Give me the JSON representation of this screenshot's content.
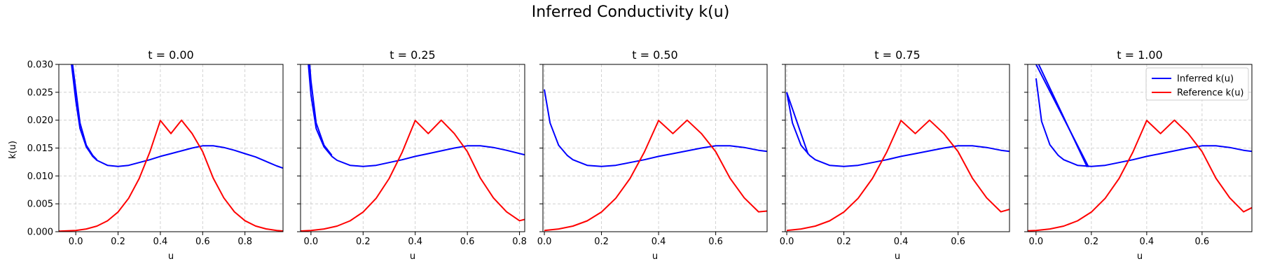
{
  "figure": {
    "title": "Inferred Conductivity k(u)",
    "ylabel": "k(u)",
    "xlabel": "u"
  },
  "colors": {
    "inferred": "#0000ff",
    "reference": "#ff0000",
    "grid": "#b0b0b0"
  },
  "chart_data": [
    {
      "type": "line",
      "title": "t = 0.00",
      "xlabel": "u",
      "ylabel": "k(u)",
      "xlim": [
        -0.08,
        0.98
      ],
      "ylim": [
        0,
        0.03
      ],
      "xticks": [
        0.0,
        0.2,
        0.4,
        0.6,
        0.8
      ],
      "xtick_labels": [
        "0.0",
        "0.2",
        "0.4",
        "0.6",
        "0.8"
      ],
      "yticks": [
        0.0,
        0.005,
        0.01,
        0.015,
        0.02,
        0.025,
        0.03
      ],
      "ytick_labels": [
        "0.000",
        "0.005",
        "0.010",
        "0.015",
        "0.020",
        "0.025",
        "0.030"
      ],
      "grid": true,
      "legend": null,
      "series": [
        {
          "name": "Inferred k(u)",
          "color": "#0000ff",
          "lines": [
            {
              "x": [
                -0.02,
                0.0,
                0.02,
                0.05,
                0.08,
                0.1,
                0.15,
                0.2,
                0.25,
                0.3,
                0.35,
                0.4,
                0.45,
                0.5,
                0.55,
                0.6,
                0.65,
                0.7,
                0.75,
                0.8,
                0.85,
                0.9,
                0.95,
                0.98
              ],
              "y": [
                0.03,
                0.0235,
                0.0185,
                0.0152,
                0.0135,
                0.0128,
                0.0119,
                0.0117,
                0.0119,
                0.0124,
                0.0129,
                0.0135,
                0.014,
                0.0145,
                0.015,
                0.0154,
                0.0154,
                0.0151,
                0.0146,
                0.014,
                0.0134,
                0.0126,
                0.0118,
                0.0114
              ]
            },
            {
              "x": [
                -0.015,
                0.0,
                0.02,
                0.05,
                0.08,
                0.1
              ],
              "y": [
                0.03,
                0.0255,
                0.0195,
                0.0155,
                0.0137,
                0.0129
              ]
            }
          ]
        },
        {
          "name": "Reference k(u)",
          "color": "#ff0000",
          "lines": [
            {
              "x": [
                -0.08,
                0.0,
                0.05,
                0.1,
                0.15,
                0.2,
                0.25,
                0.3,
                0.35,
                0.4,
                0.45,
                0.5,
                0.55,
                0.6,
                0.65,
                0.7,
                0.75,
                0.8,
                0.85,
                0.9,
                0.95,
                0.98
              ],
              "y": [
                0.0001,
                0.00022,
                0.00049,
                0.00101,
                0.00195,
                0.00353,
                0.00599,
                0.00954,
                0.01426,
                0.01994,
                0.0176,
                0.02,
                0.0176,
                0.01436,
                0.0096,
                0.00606,
                0.00357,
                0.00197,
                0.00102,
                0.0005,
                0.00022,
                0.00013
              ]
            }
          ]
        }
      ]
    },
    {
      "type": "line",
      "title": "t = 0.25",
      "xlabel": "u",
      "ylabel": "",
      "xlim": [
        -0.04,
        0.82
      ],
      "ylim": [
        0,
        0.03
      ],
      "xticks": [
        0.0,
        0.2,
        0.4,
        0.6,
        0.8
      ],
      "xtick_labels": [
        "0.0",
        "0.2",
        "0.4",
        "0.6",
        "0.8"
      ],
      "yticks": [
        0.0,
        0.005,
        0.01,
        0.015,
        0.02,
        0.025,
        0.03
      ],
      "grid": true,
      "legend": null,
      "series": [
        {
          "name": "Inferred k(u)",
          "color": "#0000ff",
          "lines": [
            {
              "x": [
                -0.01,
                0.0,
                0.02,
                0.05,
                0.08,
                0.1,
                0.15,
                0.2,
                0.25,
                0.3,
                0.35,
                0.4,
                0.45,
                0.5,
                0.55,
                0.6,
                0.65,
                0.7,
                0.75,
                0.82
              ],
              "y": [
                0.03,
                0.0245,
                0.0185,
                0.0152,
                0.0135,
                0.0128,
                0.0119,
                0.0117,
                0.0119,
                0.0124,
                0.0129,
                0.0135,
                0.014,
                0.0145,
                0.015,
                0.0154,
                0.0154,
                0.0151,
                0.0146,
                0.0138
              ]
            },
            {
              "x": [
                -0.005,
                0.0,
                0.02,
                0.05,
                0.08
              ],
              "y": [
                0.03,
                0.027,
                0.0195,
                0.0155,
                0.0137
              ]
            }
          ]
        },
        {
          "name": "Reference k(u)",
          "color": "#ff0000",
          "lines": [
            {
              "x": [
                -0.04,
                0.0,
                0.05,
                0.1,
                0.15,
                0.2,
                0.25,
                0.3,
                0.35,
                0.4,
                0.45,
                0.5,
                0.55,
                0.6,
                0.65,
                0.7,
                0.75,
                0.8,
                0.82
              ],
              "y": [
                0.00013,
                0.00022,
                0.00049,
                0.00101,
                0.00195,
                0.00353,
                0.00599,
                0.00954,
                0.01426,
                0.01994,
                0.0176,
                0.02,
                0.0176,
                0.01436,
                0.0096,
                0.00606,
                0.00357,
                0.00197,
                0.0022
              ]
            }
          ]
        }
      ]
    },
    {
      "type": "line",
      "title": "t = 0.50",
      "xlabel": "u",
      "ylabel": "",
      "xlim": [
        -0.005,
        0.78
      ],
      "ylim": [
        0,
        0.03
      ],
      "xticks": [
        0.0,
        0.2,
        0.4,
        0.6
      ],
      "xtick_labels": [
        "0.0",
        "0.2",
        "0.4",
        "0.6"
      ],
      "yticks": [
        0.0,
        0.005,
        0.01,
        0.015,
        0.02,
        0.025,
        0.03
      ],
      "grid": true,
      "legend": null,
      "series": [
        {
          "name": "Inferred k(u)",
          "color": "#0000ff",
          "lines": [
            {
              "x": [
                0.0,
                0.02,
                0.05,
                0.08,
                0.1,
                0.15,
                0.2,
                0.25,
                0.3,
                0.35,
                0.4,
                0.45,
                0.5,
                0.55,
                0.6,
                0.65,
                0.7,
                0.75,
                0.78
              ],
              "y": [
                0.0255,
                0.0195,
                0.0155,
                0.0137,
                0.0129,
                0.0119,
                0.0117,
                0.0119,
                0.0124,
                0.0129,
                0.0135,
                0.014,
                0.0145,
                0.015,
                0.0154,
                0.0154,
                0.0151,
                0.0146,
                0.0144
              ]
            }
          ]
        },
        {
          "name": "Reference k(u)",
          "color": "#ff0000",
          "lines": [
            {
              "x": [
                0.0,
                0.05,
                0.1,
                0.15,
                0.2,
                0.25,
                0.3,
                0.35,
                0.4,
                0.45,
                0.5,
                0.55,
                0.6,
                0.65,
                0.7,
                0.75,
                0.78
              ],
              "y": [
                0.00022,
                0.00049,
                0.00101,
                0.00195,
                0.00353,
                0.00599,
                0.00954,
                0.01426,
                0.01994,
                0.0176,
                0.02,
                0.0176,
                0.01436,
                0.0096,
                0.00606,
                0.00357,
                0.0037
              ]
            }
          ]
        }
      ]
    },
    {
      "type": "line",
      "title": "t = 0.75",
      "xlabel": "u",
      "ylabel": "",
      "xlim": [
        -0.005,
        0.78
      ],
      "ylim": [
        0,
        0.03
      ],
      "xticks": [
        0.0,
        0.2,
        0.4,
        0.6
      ],
      "xtick_labels": [
        "0.0",
        "0.2",
        "0.4",
        "0.6"
      ],
      "yticks": [
        0.0,
        0.005,
        0.01,
        0.015,
        0.02,
        0.025,
        0.03
      ],
      "grid": true,
      "legend": null,
      "series": [
        {
          "name": "Inferred k(u)",
          "color": "#0000ff",
          "lines": [
            {
              "x": [
                0.0,
                0.02,
                0.05,
                0.08,
                0.1,
                0.15,
                0.2,
                0.25,
                0.3,
                0.35,
                0.4,
                0.45,
                0.5,
                0.55,
                0.6,
                0.65,
                0.7,
                0.75,
                0.78
              ],
              "y": [
                0.025,
                0.0195,
                0.0155,
                0.0137,
                0.0129,
                0.0119,
                0.0117,
                0.0119,
                0.0124,
                0.0129,
                0.0135,
                0.014,
                0.0145,
                0.015,
                0.0154,
                0.0154,
                0.0151,
                0.0146,
                0.0144
              ]
            },
            {
              "x": [
                0.0,
                0.075
              ],
              "y": [
                0.025,
                0.0139
              ]
            }
          ]
        },
        {
          "name": "Reference k(u)",
          "color": "#ff0000",
          "lines": [
            {
              "x": [
                0.0,
                0.05,
                0.1,
                0.15,
                0.2,
                0.25,
                0.3,
                0.35,
                0.4,
                0.45,
                0.5,
                0.55,
                0.6,
                0.65,
                0.7,
                0.75,
                0.78
              ],
              "y": [
                0.00022,
                0.00049,
                0.00101,
                0.00195,
                0.00353,
                0.00599,
                0.00954,
                0.01426,
                0.01994,
                0.0176,
                0.02,
                0.0176,
                0.01436,
                0.0096,
                0.00606,
                0.00357,
                0.004
              ]
            }
          ]
        }
      ]
    },
    {
      "type": "line",
      "title": "t = 1.00",
      "xlabel": "u",
      "ylabel": "",
      "xlim": [
        -0.03,
        0.78
      ],
      "ylim": [
        0,
        0.03
      ],
      "xticks": [
        0.0,
        0.2,
        0.4,
        0.6
      ],
      "xtick_labels": [
        "0.0",
        "0.2",
        "0.4",
        "0.6"
      ],
      "yticks": [
        0.0,
        0.005,
        0.01,
        0.015,
        0.02,
        0.025,
        0.03
      ],
      "grid": true,
      "legend": "top-right",
      "series": [
        {
          "name": "Inferred k(u)",
          "color": "#0000ff",
          "lines": [
            {
              "x": [
                0.0,
                0.02,
                0.05,
                0.08,
                0.1,
                0.15,
                0.2,
                0.25,
                0.3,
                0.35,
                0.4,
                0.45,
                0.5,
                0.55,
                0.6,
                0.65,
                0.7,
                0.75,
                0.78
              ],
              "y": [
                0.0275,
                0.0198,
                0.0156,
                0.0137,
                0.0129,
                0.0119,
                0.0117,
                0.0119,
                0.0124,
                0.0129,
                0.0135,
                0.014,
                0.0145,
                0.015,
                0.0154,
                0.0154,
                0.0151,
                0.0146,
                0.0144
              ]
            },
            {
              "x": [
                -0.005,
                0.19
              ],
              "y": [
                0.0305,
                0.0116
              ]
            },
            {
              "x": [
                0.005,
                0.185
              ],
              "y": [
                0.0305,
                0.0116
              ]
            }
          ]
        },
        {
          "name": "Reference k(u)",
          "color": "#ff0000",
          "lines": [
            {
              "x": [
                -0.03,
                0.0,
                0.05,
                0.1,
                0.15,
                0.2,
                0.25,
                0.3,
                0.35,
                0.4,
                0.45,
                0.5,
                0.55,
                0.6,
                0.65,
                0.7,
                0.75,
                0.78
              ],
              "y": [
                0.00015,
                0.00022,
                0.00049,
                0.00101,
                0.00195,
                0.00353,
                0.00599,
                0.00954,
                0.01426,
                0.01994,
                0.0176,
                0.02,
                0.0176,
                0.01436,
                0.0096,
                0.00606,
                0.00357,
                0.0043
              ]
            }
          ]
        }
      ]
    }
  ]
}
